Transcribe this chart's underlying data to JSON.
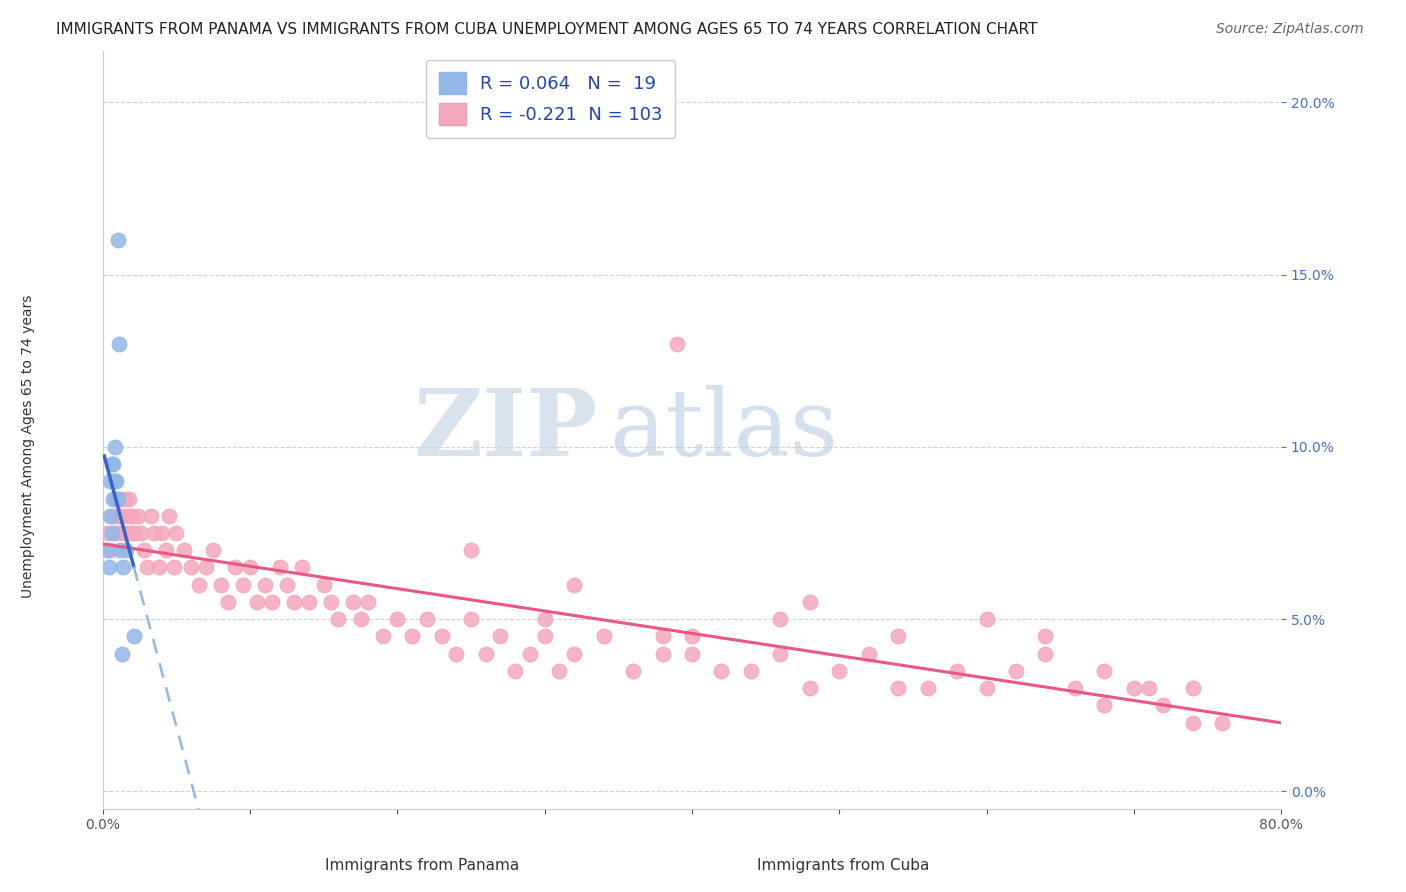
{
  "title": "IMMIGRANTS FROM PANAMA VS IMMIGRANTS FROM CUBA UNEMPLOYMENT AMONG AGES 65 TO 74 YEARS CORRELATION CHART",
  "source": "Source: ZipAtlas.com",
  "ylabel": "Unemployment Among Ages 65 to 74 years",
  "xlabel_panama": "Immigrants from Panama",
  "xlabel_cuba": "Immigrants from Cuba",
  "xlim": [
    0.0,
    0.8
  ],
  "ylim": [
    -0.005,
    0.215
  ],
  "yticks": [
    0.0,
    0.05,
    0.1,
    0.15,
    0.2
  ],
  "ytick_labels": [
    "0.0%",
    "5.0%",
    "10.0%",
    "15.0%",
    "20.0%"
  ],
  "xticks": [
    0.0,
    0.1,
    0.2,
    0.3,
    0.4,
    0.5,
    0.6,
    0.7,
    0.8
  ],
  "xtick_labels": [
    "0.0%",
    "",
    "",
    "",
    "",
    "",
    "",
    "",
    "80.0%"
  ],
  "panama_R": 0.064,
  "panama_N": 19,
  "cuba_R": -0.221,
  "cuba_N": 103,
  "panama_color": "#92b8e8",
  "cuba_color": "#f4a8bc",
  "panama_line_solid_color": "#3366cc",
  "panama_line_dash_color": "#92b8e8",
  "cuba_line_color": "#e85880",
  "title_fontsize": 11,
  "source_fontsize": 10,
  "axis_label_fontsize": 10,
  "tick_fontsize": 10,
  "legend_fontsize": 13,
  "watermark_zip": "ZIP",
  "watermark_atlas": "atlas",
  "background_color": "#ffffff",
  "panama_x": [
    0.003,
    0.004,
    0.005,
    0.005,
    0.006,
    0.006,
    0.007,
    0.007,
    0.008,
    0.008,
    0.009,
    0.01,
    0.01,
    0.011,
    0.012,
    0.014,
    0.016,
    0.021,
    0.013
  ],
  "panama_y": [
    0.07,
    0.065,
    0.08,
    0.09,
    0.075,
    0.095,
    0.085,
    0.095,
    0.09,
    0.1,
    0.09,
    0.085,
    0.16,
    0.13,
    0.07,
    0.065,
    0.07,
    0.045,
    0.04
  ],
  "cuba_x": [
    0.003,
    0.005,
    0.007,
    0.008,
    0.009,
    0.01,
    0.011,
    0.012,
    0.013,
    0.014,
    0.015,
    0.016,
    0.017,
    0.018,
    0.019,
    0.02,
    0.022,
    0.024,
    0.026,
    0.028,
    0.03,
    0.033,
    0.035,
    0.038,
    0.04,
    0.043,
    0.045,
    0.048,
    0.05,
    0.055,
    0.06,
    0.065,
    0.07,
    0.075,
    0.08,
    0.085,
    0.09,
    0.095,
    0.1,
    0.105,
    0.11,
    0.115,
    0.12,
    0.125,
    0.13,
    0.135,
    0.14,
    0.15,
    0.155,
    0.16,
    0.17,
    0.175,
    0.18,
    0.19,
    0.2,
    0.21,
    0.22,
    0.23,
    0.24,
    0.25,
    0.26,
    0.27,
    0.28,
    0.29,
    0.3,
    0.31,
    0.32,
    0.34,
    0.36,
    0.38,
    0.39,
    0.4,
    0.42,
    0.44,
    0.46,
    0.48,
    0.5,
    0.52,
    0.54,
    0.56,
    0.58,
    0.6,
    0.62,
    0.64,
    0.66,
    0.68,
    0.7,
    0.72,
    0.74,
    0.76,
    0.48,
    0.38,
    0.3,
    0.25,
    0.32,
    0.4,
    0.46,
    0.54,
    0.6,
    0.64,
    0.68,
    0.71,
    0.74
  ],
  "cuba_y": [
    0.075,
    0.07,
    0.08,
    0.085,
    0.075,
    0.08,
    0.085,
    0.08,
    0.075,
    0.08,
    0.085,
    0.075,
    0.08,
    0.085,
    0.075,
    0.08,
    0.075,
    0.08,
    0.075,
    0.07,
    0.065,
    0.08,
    0.075,
    0.065,
    0.075,
    0.07,
    0.08,
    0.065,
    0.075,
    0.07,
    0.065,
    0.06,
    0.065,
    0.07,
    0.06,
    0.055,
    0.065,
    0.06,
    0.065,
    0.055,
    0.06,
    0.055,
    0.065,
    0.06,
    0.055,
    0.065,
    0.055,
    0.06,
    0.055,
    0.05,
    0.055,
    0.05,
    0.055,
    0.045,
    0.05,
    0.045,
    0.05,
    0.045,
    0.04,
    0.05,
    0.04,
    0.045,
    0.035,
    0.04,
    0.045,
    0.035,
    0.04,
    0.045,
    0.035,
    0.04,
    0.13,
    0.04,
    0.035,
    0.035,
    0.04,
    0.03,
    0.035,
    0.04,
    0.03,
    0.03,
    0.035,
    0.03,
    0.035,
    0.04,
    0.03,
    0.025,
    0.03,
    0.025,
    0.02,
    0.02,
    0.055,
    0.045,
    0.05,
    0.07,
    0.06,
    0.045,
    0.05,
    0.045,
    0.05,
    0.045,
    0.035,
    0.03,
    0.03
  ]
}
